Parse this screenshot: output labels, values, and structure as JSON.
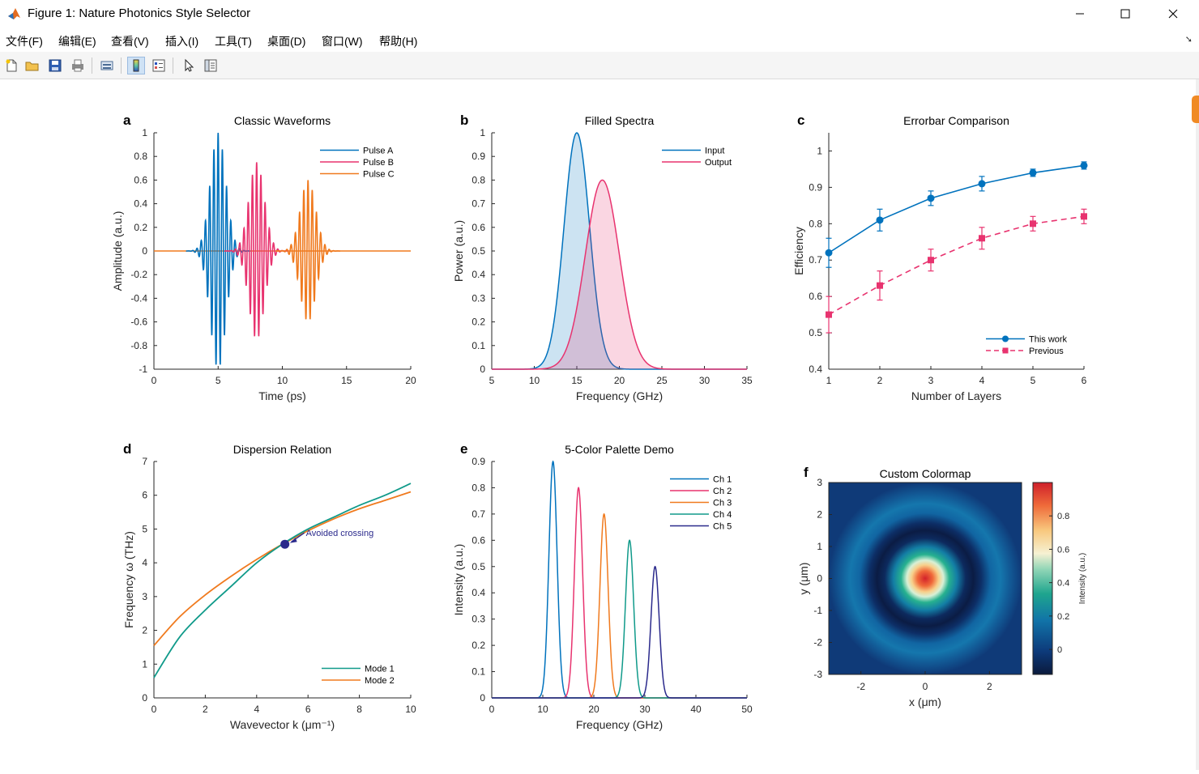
{
  "window": {
    "title": "Figure 1: Nature Photonics Style Selector",
    "menu": [
      "文件(F)",
      "编辑(E)",
      "查看(V)",
      "插入(I)",
      "工具(T)",
      "桌面(D)",
      "窗口(W)",
      "帮助(H)"
    ]
  },
  "colors": {
    "c1": "#0072BD",
    "c2": "#E8336F",
    "c3": "#F07A1E",
    "c4": "#109A8A",
    "c5": "#2B2A8C"
  },
  "chart_data": [
    {
      "panel": "a",
      "type": "line",
      "title": "Classic Waveforms",
      "xlabel": "Time (ps)",
      "ylabel": "Amplitude (a.u.)",
      "xlim": [
        0,
        20
      ],
      "ylim": [
        -1,
        1
      ],
      "xticks": [
        0,
        5,
        10,
        15,
        20
      ],
      "yticks": [
        -1,
        -0.8,
        -0.6,
        -0.4,
        -0.2,
        0,
        0.2,
        0.4,
        0.6,
        0.8,
        1
      ],
      "series": [
        {
          "name": "Pulse A",
          "center": 5,
          "amplitude": 1.0,
          "width": 0.6,
          "period": 0.33
        },
        {
          "name": "Pulse B",
          "center": 8,
          "amplitude": 0.75,
          "width": 0.6,
          "period": 0.33
        },
        {
          "name": "Pulse C",
          "center": 12,
          "amplitude": 0.6,
          "width": 0.6,
          "period": 0.33
        }
      ],
      "legend": "top-right"
    },
    {
      "panel": "b",
      "type": "area",
      "title": "Filled Spectra",
      "xlabel": "Frequency (GHz)",
      "ylabel": "Power (a.u.)",
      "xlim": [
        5,
        35
      ],
      "ylim": [
        0,
        1
      ],
      "xticks": [
        5,
        10,
        15,
        20,
        25,
        30,
        35
      ],
      "yticks": [
        0,
        0.1,
        0.2,
        0.3,
        0.4,
        0.5,
        0.6,
        0.7,
        0.8,
        0.9,
        1
      ],
      "series": [
        {
          "name": "Input",
          "center": 15,
          "amplitude": 1.0,
          "width": 1.5
        },
        {
          "name": "Output",
          "center": 18,
          "amplitude": 0.8,
          "width": 2.0
        }
      ],
      "legend": "top-right"
    },
    {
      "panel": "c",
      "type": "line",
      "title": "Errorbar Comparison",
      "xlabel": "Number of Layers",
      "ylabel": "Efficiency",
      "xlim": [
        1,
        6
      ],
      "ylim": [
        0.4,
        1.05
      ],
      "xticks": [
        1,
        2,
        3,
        4,
        5,
        6
      ],
      "yticks": [
        0.4,
        0.5,
        0.6,
        0.7,
        0.8,
        0.9,
        1
      ],
      "series": [
        {
          "name": "This work",
          "x": [
            1,
            2,
            3,
            4,
            5,
            6
          ],
          "values": [
            0.72,
            0.81,
            0.87,
            0.91,
            0.94,
            0.96
          ],
          "errors": [
            0.04,
            0.03,
            0.02,
            0.02,
            0.01,
            0.01
          ]
        },
        {
          "name": "Previous",
          "x": [
            1,
            2,
            3,
            4,
            5,
            6
          ],
          "values": [
            0.55,
            0.63,
            0.7,
            0.76,
            0.8,
            0.82
          ],
          "errors": [
            0.05,
            0.04,
            0.03,
            0.03,
            0.02,
            0.02
          ]
        }
      ],
      "legend": "bottom-right"
    },
    {
      "panel": "d",
      "type": "line",
      "title": "Dispersion Relation",
      "xlabel": "Wavevector k (μm⁻¹)",
      "ylabel": "Frequency ω (THz)",
      "xlim": [
        0,
        10
      ],
      "ylim": [
        0,
        7
      ],
      "xticks": [
        0,
        2,
        4,
        6,
        8,
        10
      ],
      "yticks": [
        0,
        1,
        2,
        3,
        4,
        5,
        6,
        7
      ],
      "series": [
        {
          "name": "Mode 1",
          "k": [
            0,
            1,
            2,
            3,
            4,
            5,
            6,
            7,
            8,
            9,
            10
          ],
          "omega": [
            0.6,
            1.8,
            2.6,
            3.3,
            4.0,
            4.55,
            5.0,
            5.35,
            5.7,
            6.0,
            6.35
          ]
        },
        {
          "name": "Mode 2",
          "k": [
            0,
            1,
            2,
            3,
            4,
            5,
            6,
            7,
            8,
            9,
            10
          ],
          "omega": [
            1.55,
            2.4,
            3.05,
            3.6,
            4.1,
            4.55,
            4.95,
            5.3,
            5.6,
            5.85,
            6.1
          ]
        }
      ],
      "annotation": {
        "text": "Avoided crossing",
        "x": 5.1,
        "y": 4.55
      },
      "legend": "bottom-right"
    },
    {
      "panel": "e",
      "type": "line",
      "title": "5-Color Palette Demo",
      "xlabel": "Frequency (GHz)",
      "ylabel": "Intensity (a.u.)",
      "xlim": [
        0,
        50
      ],
      "ylim": [
        0,
        0.9
      ],
      "xticks": [
        0,
        10,
        20,
        30,
        40,
        50
      ],
      "yticks": [
        0,
        0.1,
        0.2,
        0.3,
        0.4,
        0.5,
        0.6,
        0.7,
        0.8,
        0.9
      ],
      "series": [
        {
          "name": "Ch 1",
          "center": 12,
          "amplitude": 0.9,
          "width": 0.8
        },
        {
          "name": "Ch 2",
          "center": 17,
          "amplitude": 0.8,
          "width": 0.8
        },
        {
          "name": "Ch 3",
          "center": 22,
          "amplitude": 0.7,
          "width": 0.8
        },
        {
          "name": "Ch 4",
          "center": 27,
          "amplitude": 0.6,
          "width": 0.8
        },
        {
          "name": "Ch 5",
          "center": 32,
          "amplitude": 0.5,
          "width": 0.8
        }
      ],
      "legend": "top-right"
    },
    {
      "panel": "f",
      "type": "heatmap",
      "title": "Custom Colormap",
      "xlabel": "x (μm)",
      "ylabel": "y (μm)",
      "xlim": [
        -3,
        3
      ],
      "ylim": [
        -3,
        3
      ],
      "xticks": [
        -2,
        0,
        2
      ],
      "yticks": [
        -3,
        -2,
        -1,
        0,
        1,
        2,
        3
      ],
      "colorbar": {
        "label": "Intensity (a.u.)",
        "ticks": [
          0,
          0.2,
          0.4,
          0.6,
          0.8
        ],
        "range": [
          -0.15,
          1.0
        ]
      },
      "function": "exp(-r^2/0.3) + 0.15*cos(3r)"
    }
  ]
}
